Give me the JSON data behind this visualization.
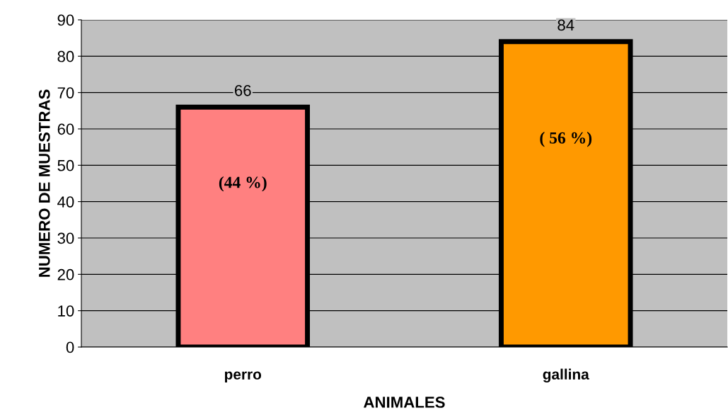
{
  "chart_data": {
    "type": "bar",
    "categories": [
      "perro",
      "gallina"
    ],
    "values": [
      66,
      84
    ],
    "colors": [
      "#ff8080",
      "#ff9900"
    ],
    "xlabel": "ANIMALES",
    "ylabel": "NUMERO DE MUESTRAS",
    "ylim": [
      0,
      90
    ],
    "yticks": [
      0,
      10,
      20,
      30,
      40,
      50,
      60,
      70,
      80,
      90
    ],
    "grid": "y",
    "data_labels": true,
    "annotations": [
      "(44 %)",
      "( 56 %)"
    ]
  }
}
